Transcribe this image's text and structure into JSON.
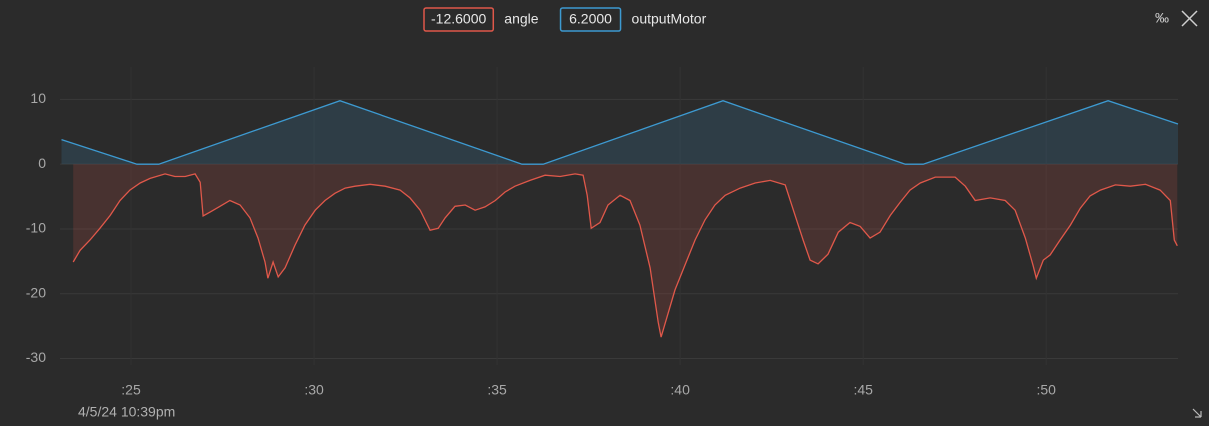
{
  "chart_data": {
    "type": "line",
    "timestamp": "4/5/24 10:39pm",
    "toolbar_icon": "‰",
    "xlim": [
      23.06,
      53.6
    ],
    "xticks": [
      {
        "value": 25,
        "label": ":25"
      },
      {
        "value": 30,
        "label": ":30"
      },
      {
        "value": 35,
        "label": ":35"
      },
      {
        "value": 40,
        "label": ":40"
      },
      {
        "value": 45,
        "label": ":45"
      },
      {
        "value": 50,
        "label": ":50"
      }
    ],
    "ylim": [
      -31,
      15
    ],
    "yticks": [
      10,
      0,
      -10,
      -20,
      -30
    ],
    "grid": true,
    "series": [
      {
        "name": "angle",
        "color": "#e0584a",
        "current_label": "-12.6000",
        "x": [
          23.42,
          23.61,
          23.88,
          24.15,
          24.43,
          24.7,
          24.97,
          25.25,
          25.52,
          25.93,
          26.2,
          26.48,
          26.75,
          26.89,
          26.97,
          27.16,
          27.43,
          27.7,
          27.98,
          28.25,
          28.47,
          28.66,
          28.74,
          28.88,
          29.02,
          29.21,
          29.48,
          29.75,
          30.03,
          30.3,
          30.57,
          30.85,
          31.12,
          31.53,
          31.94,
          32.35,
          32.62,
          32.9,
          33.17,
          33.39,
          33.58,
          33.85,
          34.13,
          34.4,
          34.67,
          34.95,
          35.22,
          35.49,
          35.9,
          36.31,
          36.72,
          37.13,
          37.35,
          37.46,
          37.57,
          37.81,
          38.03,
          38.36,
          38.63,
          38.9,
          39.18,
          39.4,
          39.48,
          39.64,
          39.86,
          40.13,
          40.41,
          40.68,
          40.95,
          41.23,
          41.64,
          42.05,
          42.46,
          42.87,
          43.14,
          43.36,
          43.55,
          43.77,
          44.04,
          44.32,
          44.64,
          44.92,
          45.19,
          45.46,
          45.74,
          46.01,
          46.28,
          46.56,
          46.97,
          47.51,
          47.79,
          48.06,
          48.47,
          48.88,
          49.15,
          49.43,
          49.64,
          49.73,
          49.92,
          50.11,
          50.38,
          50.66,
          50.93,
          51.2,
          51.48,
          51.89,
          52.3,
          52.71,
          53.11,
          53.39,
          53.5,
          53.58
        ],
        "values": [
          -15.1,
          -13.3,
          -11.7,
          -9.9,
          -7.9,
          -5.6,
          -4.0,
          -2.9,
          -2.2,
          -1.5,
          -1.9,
          -1.9,
          -1.5,
          -2.8,
          -8.0,
          -7.4,
          -6.5,
          -5.6,
          -6.3,
          -8.3,
          -11.4,
          -15.1,
          -17.6,
          -15.1,
          -17.4,
          -16.0,
          -12.5,
          -9.4,
          -7.1,
          -5.6,
          -4.5,
          -3.7,
          -3.4,
          -3.1,
          -3.4,
          -4.0,
          -5.2,
          -7.1,
          -10.2,
          -9.9,
          -8.3,
          -6.5,
          -6.3,
          -7.1,
          -6.6,
          -5.6,
          -4.3,
          -3.4,
          -2.5,
          -1.7,
          -1.9,
          -1.5,
          -1.7,
          -4.8,
          -9.9,
          -9.0,
          -6.3,
          -4.8,
          -5.6,
          -9.4,
          -16.0,
          -24.4,
          -26.7,
          -23.6,
          -19.4,
          -15.6,
          -11.7,
          -8.6,
          -6.3,
          -4.8,
          -3.7,
          -2.9,
          -2.5,
          -3.2,
          -7.9,
          -11.7,
          -14.8,
          -15.4,
          -13.9,
          -10.5,
          -9.0,
          -9.6,
          -11.4,
          -10.5,
          -7.9,
          -5.9,
          -4.0,
          -2.9,
          -2.0,
          -2.0,
          -3.4,
          -5.6,
          -5.2,
          -5.6,
          -7.1,
          -11.4,
          -15.6,
          -17.6,
          -14.8,
          -14.0,
          -11.7,
          -9.4,
          -6.8,
          -4.9,
          -4.0,
          -3.2,
          -3.4,
          -3.1,
          -4.0,
          -5.6,
          -11.7,
          -12.6
        ]
      },
      {
        "name": "outputMotor",
        "color": "#3d9ad1",
        "current_label": "6.2000",
        "x": [
          23.1,
          25.16,
          25.76,
          30.71,
          35.68,
          36.26,
          41.17,
          46.15,
          46.64,
          51.69,
          53.6
        ],
        "values": [
          3.8,
          0,
          0,
          9.8,
          0,
          0,
          9.8,
          0,
          0,
          9.8,
          6.2
        ]
      }
    ]
  }
}
